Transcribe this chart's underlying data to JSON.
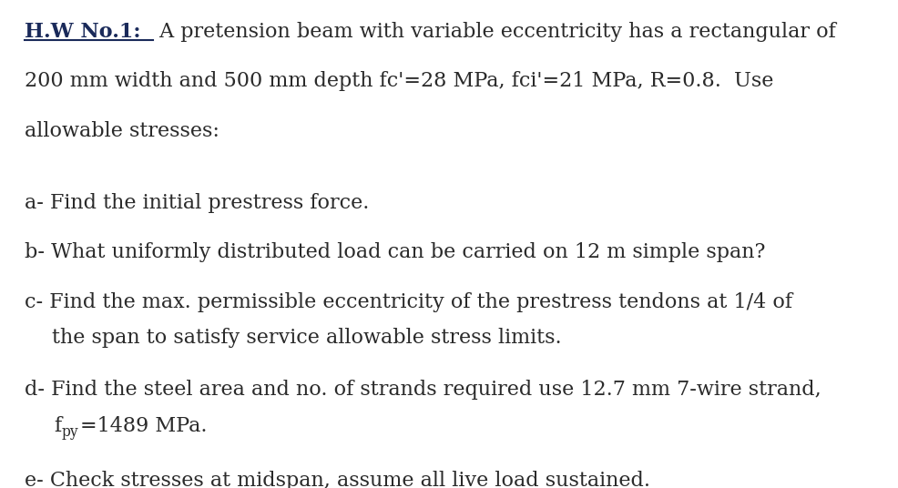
{
  "background_color": "#ffffff",
  "title_color": "#1a2a5a",
  "text_color": "#2a2a2a",
  "title_bold": "H.W No.1:",
  "title_normal": " A pretension beam with variable eccentricity has a rectangular of",
  "line2": "200 mm width and 500 mm depth fc'=28 MPa, fci'=21 MPa, R=0.8.  Use",
  "line3": "allowable stresses:",
  "item_a": "a- Find the initial prestress force.",
  "item_b": "b- What uniformly distributed load can be carried on 12 m simple span?",
  "item_c1": "c- Find the max. permissible eccentricity of the prestress tendons at 1/4 of",
  "item_c2": "the span to satisfy service allowable stress limits.",
  "item_d1": "d- Find the steel area and no. of strands required use 12.7 mm 7-wire strand,",
  "item_d2_prefix": "f",
  "item_d2_subscript": "py",
  "item_d2_suffix": "=1489 MPa.",
  "item_e": "e- Check stresses at midspan, assume all live load sustained.",
  "font_size": 16.0,
  "font_family": "DejaVu Serif",
  "figsize": [
    9.87,
    5.36
  ],
  "dpi": 100
}
